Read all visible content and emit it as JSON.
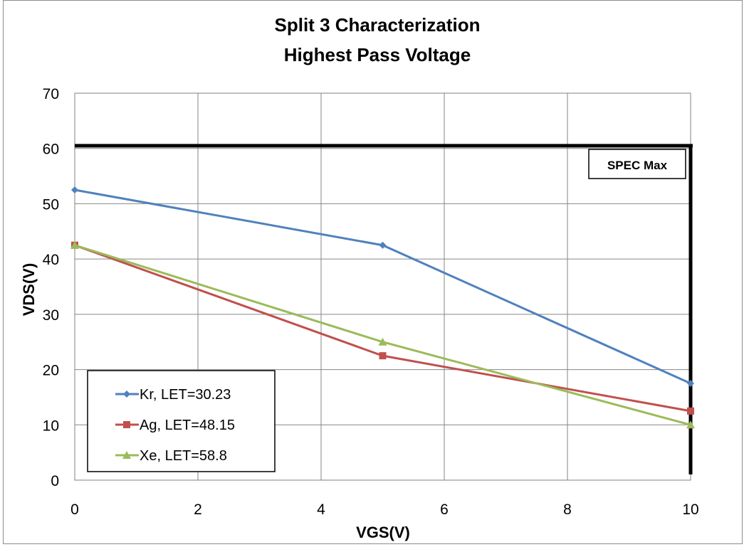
{
  "chart_data": {
    "type": "line",
    "title": "Split 3 Characterization",
    "subtitle": "Highest Pass Voltage",
    "xlabel": "VGS(V)",
    "ylabel": "VDS(V)",
    "xlim": [
      0,
      10
    ],
    "ylim": [
      0,
      70
    ],
    "x_ticks": [
      0,
      2,
      4,
      6,
      8,
      10
    ],
    "y_ticks": [
      0,
      10,
      20,
      30,
      40,
      50,
      60,
      70
    ],
    "grid": true,
    "legend_position": "bottom-left",
    "series": [
      {
        "name": "Kr, LET=30.23",
        "color": "#4f81bd",
        "marker": "diamond",
        "points": [
          [
            0,
            52.5
          ],
          [
            5,
            42.5
          ],
          [
            10,
            17.5
          ]
        ]
      },
      {
        "name": "Ag, LET=48.15",
        "color": "#c0504d",
        "marker": "square",
        "points": [
          [
            0,
            42.5
          ],
          [
            5,
            22.5
          ],
          [
            10,
            12.5
          ]
        ]
      },
      {
        "name": "Xe, LET=58.8",
        "color": "#9bbb59",
        "marker": "triangle",
        "points": [
          [
            0,
            42.5
          ],
          [
            5,
            25
          ],
          [
            10,
            10
          ]
        ]
      }
    ],
    "spec_limit": {
      "label": "SPEC Max",
      "y": 60.5,
      "x": 10,
      "color": "#000000"
    }
  }
}
